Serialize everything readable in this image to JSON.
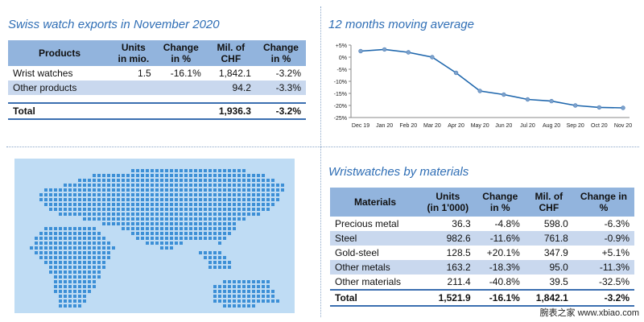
{
  "exports": {
    "title": "Swiss watch exports in November 2020",
    "headers": [
      [
        "Products"
      ],
      [
        "Units",
        "in mio."
      ],
      [
        "Change",
        "in %"
      ],
      [
        "Mil. of",
        "CHF"
      ],
      [
        "Change",
        "in %"
      ]
    ],
    "rows": [
      [
        "Wrist watches",
        "1.5",
        "-16.1%",
        "1,842.1",
        "-3.2%"
      ],
      [
        "Other products",
        "",
        "",
        "94.2",
        "-3.3%"
      ]
    ],
    "total": [
      "Total",
      "",
      "",
      "1,936.3",
      "-3.2%"
    ]
  },
  "moving_average": {
    "title": "12 months moving average",
    "chart_data": {
      "type": "line",
      "x": [
        "Dec 19",
        "Jan 20",
        "Feb 20",
        "Mar 20",
        "Apr 20",
        "May 20",
        "Jun 20",
        "Jul 20",
        "Aug 20",
        "Sep 20",
        "Oct 20",
        "Nov 20"
      ],
      "series": [
        {
          "values": [
            2.5,
            3.2,
            2.0,
            0.0,
            -6.5,
            -14.0,
            -15.5,
            -17.5,
            -18.2,
            -20.0,
            -20.8,
            -21.0
          ]
        }
      ],
      "y_ticks": [
        "+5%",
        "0%",
        "-5%",
        "-10%",
        "-15%",
        "-20%",
        "-25%"
      ],
      "ylim": [
        -25,
        5
      ],
      "grid": false,
      "line_color": "#1f67ad",
      "marker_color": "#7da2cc"
    }
  },
  "materials": {
    "title": "Wristwatches by materials",
    "headers": [
      [
        "Materials"
      ],
      [
        "Units",
        "(in 1'000)"
      ],
      [
        "Change",
        "in %"
      ],
      [
        "Mil. of",
        "CHF"
      ],
      [
        "Change in",
        "%"
      ]
    ],
    "rows": [
      [
        "Precious metal",
        "36.3",
        "-4.8%",
        "598.0",
        "-6.3%"
      ],
      [
        "Steel",
        "982.6",
        "-11.6%",
        "761.8",
        "-0.9%"
      ],
      [
        "Gold-steel",
        "128.5",
        "+20.1%",
        "347.9",
        "+5.1%"
      ],
      [
        "Other metals",
        "163.2",
        "-18.3%",
        "95.0",
        "-11.3%"
      ],
      [
        "Other materials",
        "211.4",
        "-40.8%",
        "39.5",
        "-32.5%"
      ]
    ],
    "total": [
      "Total",
      "1,521.9",
      "-16.1%",
      "1,842.1",
      "-3.2%"
    ]
  },
  "watermark": "腕表之家 www.xbiao.com",
  "colors": {
    "accent": "#2f6eb5",
    "header_bg": "#92b4dd",
    "stripe_bg": "#c9d8ee",
    "map_bg": "#bfdcf4",
    "map_dots": "#3c8fd6"
  }
}
